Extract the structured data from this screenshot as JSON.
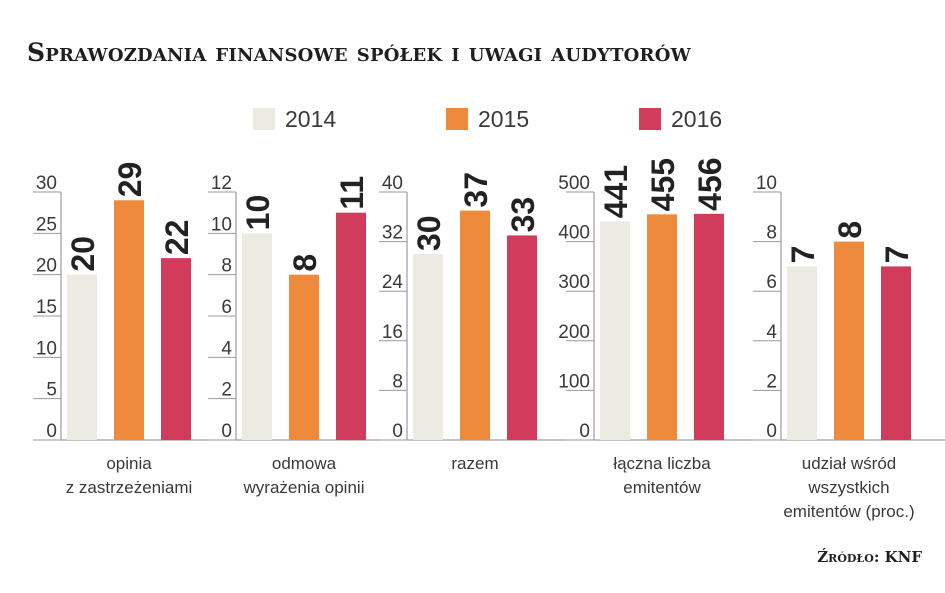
{
  "title": "Sprawozdania finansowe spółek i uwagi audytorów",
  "source": "Źródło: KNF",
  "legend": {
    "items": [
      {
        "label": "2014",
        "color": "#ebebe3"
      },
      {
        "label": "2015",
        "color": "#ee8a3c"
      },
      {
        "label": "2016",
        "color": "#d23c5c"
      }
    ]
  },
  "chart_data": [
    {
      "type": "bar",
      "title": "opinia z zastrzeżeniami",
      "xlabel_lines": [
        "opinia",
        "z zastrzeżeniami"
      ],
      "categories": [
        "2014",
        "2015",
        "2016"
      ],
      "values": [
        20,
        29,
        22
      ],
      "value_labels": [
        "20",
        "29",
        "22"
      ],
      "ylim": [
        0,
        30
      ],
      "yticks": [
        0,
        5,
        10,
        15,
        20,
        25,
        30
      ],
      "ytick_labels": [
        "0",
        "5",
        "10",
        "15",
        "20",
        "25",
        "30"
      ]
    },
    {
      "type": "bar",
      "title": "odmowa wyrażenia opinii",
      "xlabel_lines": [
        "odmowa",
        "wyrażenia opinii"
      ],
      "categories": [
        "2014",
        "2015",
        "2016"
      ],
      "values": [
        10,
        8,
        11
      ],
      "value_labels": [
        "10",
        "8",
        "11"
      ],
      "ylim": [
        0,
        12
      ],
      "yticks": [
        0,
        2,
        4,
        6,
        8,
        10,
        12
      ],
      "ytick_labels": [
        "0",
        "2",
        "4",
        "6",
        "8",
        "10",
        "12"
      ]
    },
    {
      "type": "bar",
      "title": "razem",
      "xlabel_lines": [
        "razem"
      ],
      "categories": [
        "2014",
        "2015",
        "2016"
      ],
      "values": [
        30,
        37,
        33
      ],
      "value_labels": [
        "30",
        "37",
        "33"
      ],
      "ylim": [
        0,
        40
      ],
      "yticks": [
        0,
        8,
        16,
        24,
        32,
        40
      ],
      "ytick_labels": [
        "0",
        "8",
        "16",
        "24",
        "32",
        "40"
      ]
    },
    {
      "type": "bar",
      "title": "łączna liczba emitentów",
      "xlabel_lines": [
        "łączna liczba",
        "emitentów"
      ],
      "categories": [
        "2014",
        "2015",
        "2016"
      ],
      "values": [
        441,
        455,
        456
      ],
      "value_labels": [
        "441",
        "455",
        "456"
      ],
      "ylim": [
        0,
        500
      ],
      "yticks": [
        0,
        100,
        200,
        300,
        400,
        500
      ],
      "ytick_labels": [
        "0",
        "100",
        "200",
        "300",
        "400",
        "500"
      ]
    },
    {
      "type": "bar",
      "title": "udział wśród wszystkich emitentów (proc.)",
      "xlabel_lines": [
        "udział wśród",
        "wszystkich",
        "emitentów (proc.)"
      ],
      "categories": [
        "2014",
        "2015",
        "2016"
      ],
      "values": [
        7,
        8,
        7
      ],
      "value_labels": [
        "7",
        "8",
        "7"
      ],
      "ylim": [
        0,
        10
      ],
      "yticks": [
        0,
        2,
        4,
        6,
        8,
        10
      ],
      "ytick_labels": [
        "0",
        "2",
        "4",
        "6",
        "8",
        "10"
      ]
    }
  ]
}
